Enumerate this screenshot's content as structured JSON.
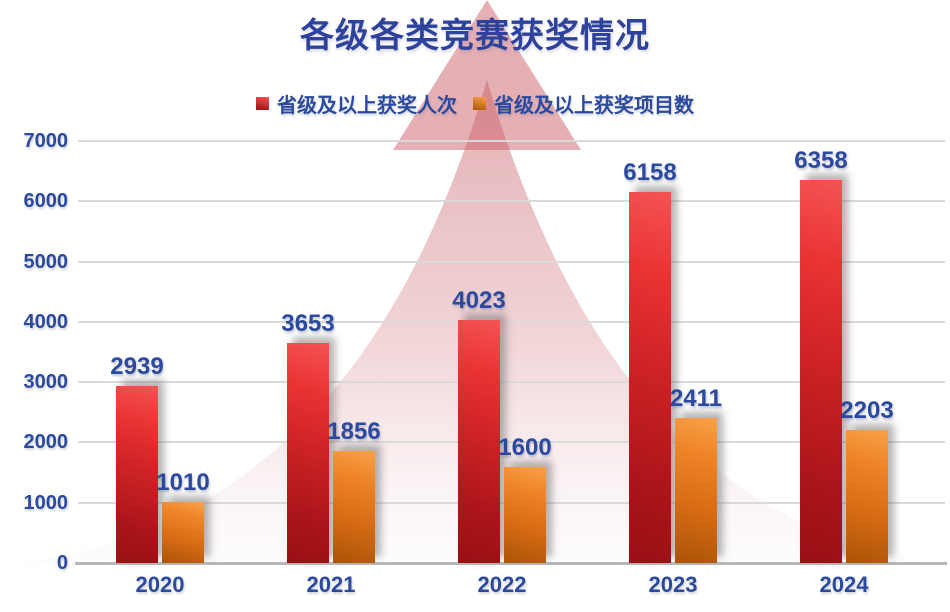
{
  "title": "各级各类竞赛获奖情况",
  "colors": {
    "text_navy": "#2b4a9e",
    "series_red": "#d02427",
    "series_red_light": "#f45353",
    "series_red_dark": "#991014",
    "series_orange": "#d96c15",
    "series_orange_light": "#f9a149",
    "series_orange_dark": "#aa5406",
    "arrowhead_pink": "#cb6069",
    "bell_pink_top": "#c45a62",
    "bell_pink_bottom": "#f2dfe1",
    "gridline_gray": "#dadada"
  },
  "chart_data": {
    "type": "bar",
    "title": "各级各类竞赛获奖情况",
    "categories": [
      "2020",
      "2021",
      "2022",
      "2023",
      "2024"
    ],
    "series": [
      {
        "name": "省级及以上获奖人次",
        "values": [
          2939,
          3653,
          4023,
          6158,
          6358
        ],
        "color": "#d02427"
      },
      {
        "name": "省级及以上获奖项目数",
        "values": [
          1010,
          1856,
          1600,
          2411,
          2203
        ],
        "color": "#d96c15"
      }
    ],
    "xlabel": "",
    "ylabel": "",
    "ylim": [
      0,
      7000
    ],
    "ytick_step": 1000,
    "grid": true,
    "legend_position": "top",
    "annotations": "large translucent pink upward-arrow / growth-mountain shape behind bars"
  }
}
